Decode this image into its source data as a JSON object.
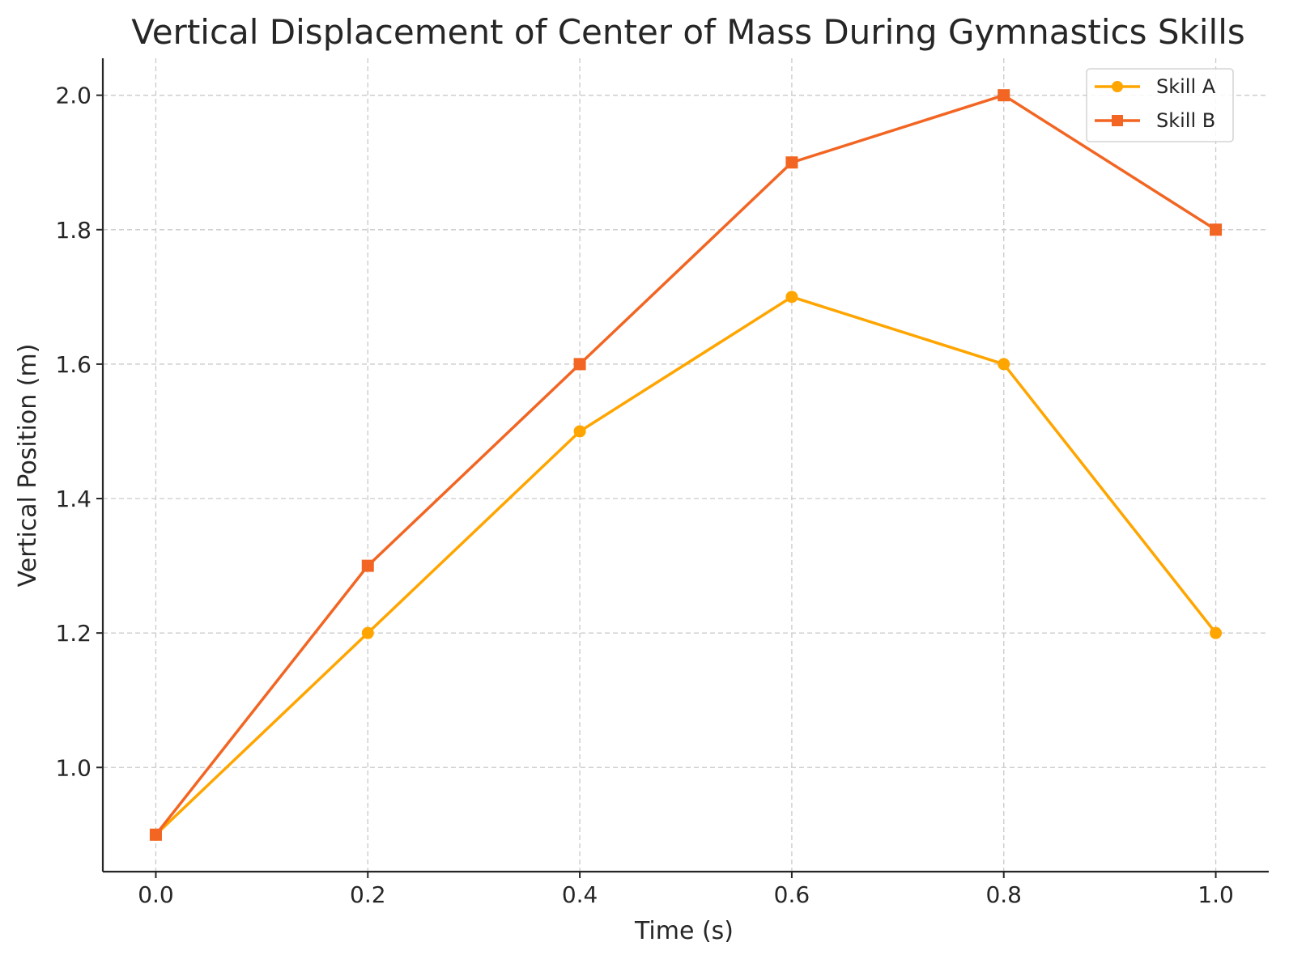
{
  "chart_data": {
    "type": "line",
    "title": "Vertical Displacement of Center of Mass During Gymnastics Skills",
    "xlabel": "Time (s)",
    "ylabel": "Vertical Position (m)",
    "x": [
      0.0,
      0.2,
      0.4,
      0.6,
      0.8,
      1.0
    ],
    "xticks": [
      "0.0",
      "0.2",
      "0.4",
      "0.6",
      "0.8",
      "1.0"
    ],
    "yticks": [
      "1.0",
      "1.2",
      "1.4",
      "1.6",
      "1.8",
      "2.0"
    ],
    "xlim": [
      -0.05,
      1.05
    ],
    "ylim": [
      0.845,
      2.055
    ],
    "grid": true,
    "legend_position": "top-right",
    "series": [
      {
        "name": "Skill A",
        "marker": "circle",
        "color": "#FFA500",
        "values": [
          0.9,
          1.2,
          1.5,
          1.7,
          1.6,
          1.2
        ]
      },
      {
        "name": "Skill B",
        "marker": "square",
        "color": "#F26522",
        "values": [
          0.9,
          1.3,
          1.6,
          1.9,
          2.0,
          1.8
        ]
      }
    ]
  }
}
